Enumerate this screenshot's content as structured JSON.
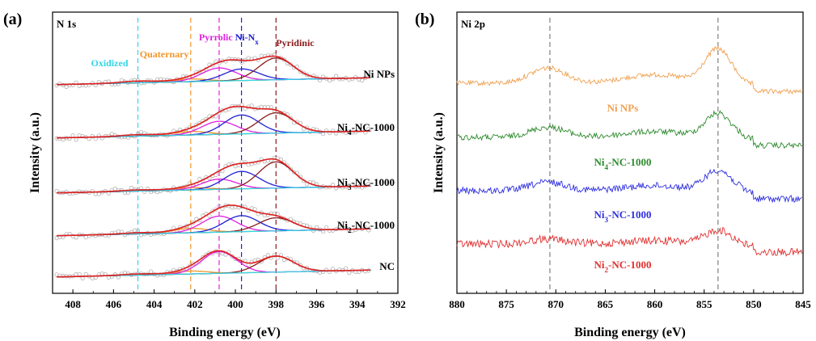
{
  "chart_data": [
    {
      "type": "line",
      "panel_label": "(a)",
      "corner_label": "N 1s",
      "xlabel": "Binding energy (eV)",
      "ylabel": "Intensity (a.u.)",
      "xlim": [
        409,
        392
      ],
      "x_ticks": [
        "408",
        "406",
        "404",
        "402",
        "400",
        "398",
        "396",
        "394",
        "392"
      ],
      "reference_lines": [
        {
          "name": "Oxidized",
          "x": 404.8,
          "color": "#33d6e6"
        },
        {
          "name": "Quaternary",
          "x": 402.2,
          "color": "#f0962a"
        },
        {
          "name": "Pyrrolic",
          "x": 400.8,
          "color": "#e020e0"
        },
        {
          "name": "Ni-N",
          "sub": "x",
          "x": 399.7,
          "color": "#2020d0"
        },
        {
          "name": "Pyridinic",
          "x": 398.0,
          "color": "#8b1a1a"
        }
      ],
      "series": [
        {
          "name": "Ni NPs",
          "sub": "",
          "components": {
            "Oxidized": 0.06,
            "Quaternary": 0.09,
            "Pyrrolic": 0.45,
            "Ni-Nx": 0.4,
            "Pyridinic": 0.75
          }
        },
        {
          "name": "Ni",
          "sub": "4",
          "suffix": "-NC-1000",
          "components": {
            "Oxidized": 0.05,
            "Quaternary": 0.12,
            "Pyrrolic": 0.45,
            "Ni-Nx": 0.65,
            "Pyridinic": 0.7
          }
        },
        {
          "name": "Ni",
          "sub": "3",
          "suffix": "-NC-1000",
          "components": {
            "Oxidized": 0.04,
            "Quaternary": 0.08,
            "Pyrrolic": 0.35,
            "Ni-Nx": 0.6,
            "Pyridinic": 0.9
          }
        },
        {
          "name": "Ni",
          "sub": "2",
          "suffix": "-NC-1000",
          "components": {
            "Oxidized": 0.04,
            "Quaternary": 0.15,
            "Pyrrolic": 0.55,
            "Ni-Nx": 0.55,
            "Pyridinic": 0.45
          }
        },
        {
          "name": "NC",
          "sub": "",
          "components": {
            "Oxidized": 0.04,
            "Quaternary": 0.1,
            "Pyrrolic": 0.75,
            "Ni-Nx": 0.0,
            "Pyridinic": 0.55
          }
        }
      ]
    },
    {
      "type": "line",
      "panel_label": "(b)",
      "corner_label": "Ni 2p",
      "xlabel": "Binding energy (eV)",
      "ylabel": "Intensity (a.u.)",
      "xlim": [
        880,
        845
      ],
      "x_ticks": [
        "880",
        "875",
        "870",
        "865",
        "860",
        "855",
        "850",
        "845"
      ],
      "reference_lines": [
        {
          "x": 870.6
        },
        {
          "x": 853.6
        }
      ],
      "series": [
        {
          "name": "Ni NPs",
          "sub": "",
          "color": "#f0a050",
          "peak_853": 1.0,
          "peak_870": 0.45
        },
        {
          "name": "Ni",
          "sub": "4",
          "suffix": "-NC-1000",
          "color": "#2e8b2e",
          "peak_853": 0.7,
          "peak_870": 0.3
        },
        {
          "name": "Ni",
          "sub": "3",
          "suffix": "-NC-1000",
          "color": "#3030e0",
          "peak_853": 0.6,
          "peak_870": 0.25
        },
        {
          "name": "Ni",
          "sub": "2",
          "suffix": "-NC-1000",
          "color": "#e03030",
          "peak_853": 0.4,
          "peak_870": 0.15
        }
      ]
    }
  ]
}
